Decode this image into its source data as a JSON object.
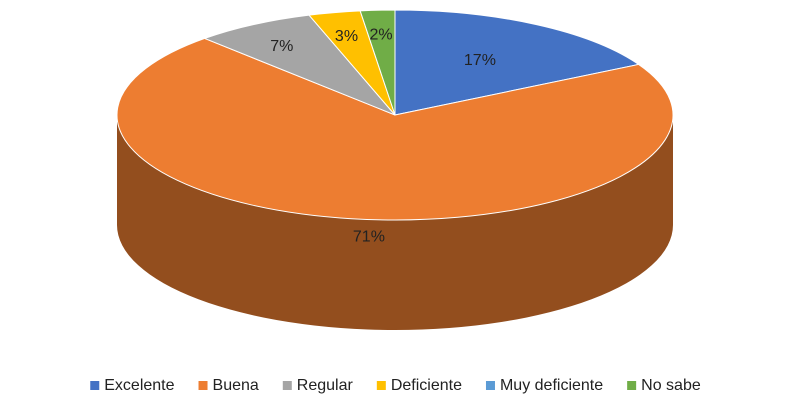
{
  "chart_data": {
    "type": "pie",
    "categories": [
      "Excelente",
      "Buena",
      "Regular",
      "Deficiente",
      "Muy deficiente",
      "No sabe"
    ],
    "values": [
      17,
      71,
      7,
      3,
      0,
      2
    ],
    "value_labels": [
      "17%",
      "71%",
      "7%",
      "3%",
      null,
      "2%"
    ],
    "colors": [
      "#4472c4",
      "#ed7d31",
      "#a5a5a5",
      "#ffc000",
      "#5b9bd5",
      "#70ad47"
    ],
    "legend": "bottom"
  }
}
